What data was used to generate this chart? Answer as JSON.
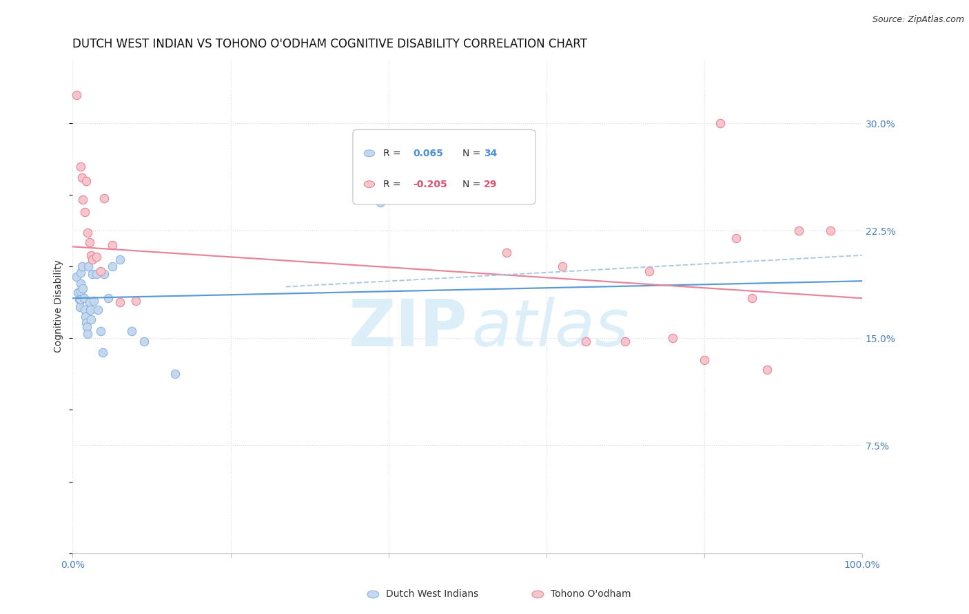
{
  "title": "DUTCH WEST INDIAN VS TOHONO O'ODHAM COGNITIVE DISABILITY CORRELATION CHART",
  "source": "Source: ZipAtlas.com",
  "ylabel": "Cognitive Disability",
  "ytick_values": [
    0.075,
    0.15,
    0.225,
    0.3
  ],
  "ytick_labels": [
    "7.5%",
    "15.0%",
    "22.5%",
    "30.0%"
  ],
  "xlim": [
    0.0,
    1.0
  ],
  "ylim": [
    0.0,
    0.345
  ],
  "legend_label_blue": "Dutch West Indians",
  "legend_label_pink": "Tohono O'odham",
  "R_blue": 0.065,
  "N_blue": 34,
  "R_pink": -0.205,
  "N_pink": 29,
  "blue_scatter_x": [
    0.005,
    0.007,
    0.008,
    0.009,
    0.01,
    0.01,
    0.01,
    0.01,
    0.012,
    0.013,
    0.014,
    0.015,
    0.016,
    0.017,
    0.018,
    0.019,
    0.02,
    0.021,
    0.022,
    0.023,
    0.025,
    0.027,
    0.03,
    0.032,
    0.035,
    0.038,
    0.04,
    0.045,
    0.05,
    0.06,
    0.075,
    0.09,
    0.13,
    0.39
  ],
  "blue_scatter_y": [
    0.193,
    0.182,
    0.177,
    0.172,
    0.196,
    0.188,
    0.183,
    0.177,
    0.2,
    0.185,
    0.178,
    0.17,
    0.165,
    0.161,
    0.158,
    0.153,
    0.2,
    0.175,
    0.17,
    0.163,
    0.195,
    0.176,
    0.195,
    0.17,
    0.155,
    0.14,
    0.195,
    0.178,
    0.2,
    0.205,
    0.155,
    0.148,
    0.125,
    0.245
  ],
  "pink_scatter_x": [
    0.005,
    0.01,
    0.012,
    0.013,
    0.015,
    0.017,
    0.019,
    0.021,
    0.023,
    0.025,
    0.03,
    0.035,
    0.04,
    0.05,
    0.06,
    0.08,
    0.55,
    0.62,
    0.65,
    0.7,
    0.73,
    0.76,
    0.8,
    0.82,
    0.84,
    0.86,
    0.88,
    0.92,
    0.96
  ],
  "pink_scatter_y": [
    0.32,
    0.27,
    0.262,
    0.247,
    0.238,
    0.26,
    0.224,
    0.217,
    0.208,
    0.205,
    0.207,
    0.197,
    0.248,
    0.215,
    0.175,
    0.176,
    0.21,
    0.2,
    0.148,
    0.148,
    0.197,
    0.15,
    0.135,
    0.3,
    0.22,
    0.178,
    0.128,
    0.225,
    0.225
  ],
  "blue_line_x": [
    0.0,
    1.0
  ],
  "blue_line_y": [
    0.178,
    0.19
  ],
  "pink_line_x": [
    0.0,
    1.0
  ],
  "pink_line_y": [
    0.214,
    0.178
  ],
  "dash_line_x": [
    0.27,
    1.0
  ],
  "dash_line_y": [
    0.186,
    0.208
  ],
  "blue_color": "#c5d8f0",
  "blue_edge_color": "#89b4de",
  "pink_color": "#f7c5cc",
  "pink_edge_color": "#e8849a",
  "blue_line_color": "#5b9bd5",
  "pink_line_color": "#e8849a",
  "dash_line_color": "#aac8e0",
  "watermark_zip": "ZIP",
  "watermark_atlas": "atlas",
  "watermark_color": "#dceef8",
  "grid_color": "#d8d8d8",
  "background_color": "#ffffff",
  "title_fontsize": 12,
  "source_fontsize": 9,
  "axis_label_fontsize": 10,
  "tick_fontsize": 10,
  "marker_size": 80,
  "legend_R_color_blue": "#4a90d9",
  "legend_R_color_pink": "#e05070",
  "legend_N_color": "#333333"
}
